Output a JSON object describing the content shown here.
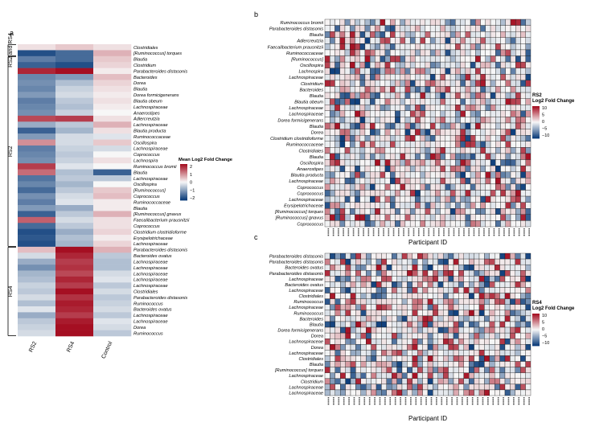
{
  "panel_labels": {
    "a": "a",
    "b": "b",
    "c": "c"
  },
  "chart_data": [
    {
      "type": "heatmap",
      "panel": "a",
      "columns": [
        "RS2",
        "RS4",
        "Control"
      ],
      "groups": [
        "RS2 and RS4",
        "RS2",
        "RS4"
      ],
      "legend": {
        "title": "Mean Log2 Fold Change",
        "ticks": [
          "2",
          "1",
          "0",
          "−1",
          "−2"
        ],
        "range": [
          -2,
          2
        ]
      },
      "rows": [
        {
          "name": "Clostridiales",
          "values": [
            0.2,
            0.4,
            0.2
          ]
        },
        {
          "name": "[Ruminococcus] torques",
          "values": [
            -1.8,
            -1.5,
            0.6
          ]
        },
        {
          "name": "Blautia",
          "values": [
            -1.3,
            -1.5,
            0.4
          ]
        },
        {
          "name": "Clostridium",
          "values": [
            -1.6,
            -1.8,
            0.3
          ]
        },
        {
          "name": "Parabacteroides distasonis",
          "values": [
            1.8,
            2.2,
            0.1
          ]
        },
        {
          "name": "Bacteroides",
          "values": [
            -1.2,
            -1.0,
            0.5
          ]
        },
        {
          "name": "Dorea",
          "values": [
            -1.1,
            -0.6,
            0.3
          ]
        },
        {
          "name": "Blautia",
          "values": [
            -1.2,
            -0.4,
            0.2
          ]
        },
        {
          "name": "Dorea formicigenerans",
          "values": [
            -1.0,
            -0.3,
            0.1
          ]
        },
        {
          "name": "Blautia obeum",
          "values": [
            -1.3,
            -0.5,
            0.2
          ]
        },
        {
          "name": "Lachnospiraceae",
          "values": [
            -1.2,
            -0.6,
            0.1
          ]
        },
        {
          "name": "Anaerostipes",
          "values": [
            -1.1,
            -0.4,
            0.0
          ]
        },
        {
          "name": "Adlercreutzia",
          "values": [
            1.5,
            1.6,
            0.2
          ]
        },
        {
          "name": "Lachnospiraceae",
          "values": [
            -0.8,
            -0.5,
            0.6
          ]
        },
        {
          "name": "Blautia producta",
          "values": [
            -1.6,
            -0.7,
            0.2
          ]
        },
        {
          "name": "Ruminococcaceae",
          "values": [
            -1.0,
            -0.3,
            -0.2
          ]
        },
        {
          "name": "Oscillospira",
          "values": [
            0.9,
            -0.3,
            0.4
          ]
        },
        {
          "name": "Lachnospiraceae",
          "values": [
            -1.3,
            -0.4,
            -0.3
          ]
        },
        {
          "name": "Coprococcus",
          "values": [
            -1.2,
            -0.5,
            0.0
          ]
        },
        {
          "name": "Lachnospira",
          "values": [
            -1.1,
            -0.4,
            0.2
          ]
        },
        {
          "name": "Ruminococcus bromii",
          "values": [
            1.6,
            -0.2,
            0.0
          ]
        },
        {
          "name": "Blautia",
          "values": [
            1.2,
            -0.6,
            -1.6
          ]
        },
        {
          "name": "Lachnospiraceae",
          "values": [
            -1.4,
            -0.5,
            -0.5
          ]
        },
        {
          "name": "Oscillospira",
          "values": [
            -1.2,
            -0.7,
            0.0
          ]
        },
        {
          "name": "[Ruminococcus]",
          "values": [
            -1.5,
            -0.5,
            0.4
          ]
        },
        {
          "name": "Coprococcus",
          "values": [
            -1.1,
            -0.3,
            0.5
          ]
        },
        {
          "name": "Ruminococcaceae",
          "values": [
            -1.3,
            -0.2,
            0.1
          ]
        },
        {
          "name": "Blautia",
          "values": [
            -1.0,
            -0.8,
            0.1
          ]
        },
        {
          "name": "[Ruminococcus] gnavus",
          "values": [
            -1.6,
            -0.5,
            0.6
          ]
        },
        {
          "name": "Faecalibacterium prausnitzii",
          "values": [
            1.3,
            -0.3,
            0.2
          ]
        },
        {
          "name": "Coprococcus",
          "values": [
            -1.5,
            -0.5,
            0.2
          ]
        },
        {
          "name": "Clostridium clostridioforme",
          "values": [
            -1.8,
            -0.8,
            0.3
          ]
        },
        {
          "name": "Erysipelotrichaceae",
          "values": [
            -1.7,
            -0.6,
            0.1
          ]
        },
        {
          "name": "Lachnospiraceae",
          "values": [
            -1.8,
            -0.7,
            0.3
          ]
        },
        {
          "name": "Parabacteroides distasonis",
          "values": [
            0.5,
            2.1,
            0.6
          ]
        },
        {
          "name": "Bacteroides ovatus",
          "values": [
            -0.3,
            1.8,
            -0.5
          ]
        },
        {
          "name": "Lachnospiraceae",
          "values": [
            -0.8,
            1.6,
            -0.6
          ]
        },
        {
          "name": "Lachnospiraceae",
          "values": [
            -1.1,
            1.7,
            -0.6
          ]
        },
        {
          "name": "Lachnospiraceae",
          "values": [
            -0.7,
            1.5,
            -0.3
          ]
        },
        {
          "name": "Lachnospiraceae",
          "values": [
            -0.6,
            1.8,
            -0.2
          ]
        },
        {
          "name": "Lachnospiraceae",
          "values": [
            -0.4,
            1.6,
            -0.5
          ]
        },
        {
          "name": "Clostridiales",
          "values": [
            -0.5,
            2.0,
            -0.3
          ]
        },
        {
          "name": "Parabacteroides distasonis",
          "values": [
            -0.3,
            1.7,
            -0.5
          ]
        },
        {
          "name": "Ruminococcus",
          "values": [
            -0.6,
            1.9,
            -0.4
          ]
        },
        {
          "name": "Bacteroides ovatus",
          "values": [
            -0.2,
            1.8,
            -0.3
          ]
        },
        {
          "name": "Lachnospiraceae",
          "values": [
            -0.8,
            1.6,
            -0.5
          ]
        },
        {
          "name": "Lachnospiraceae",
          "values": [
            -0.5,
            1.9,
            -0.2
          ]
        },
        {
          "name": "Dorea",
          "values": [
            -0.4,
            2.0,
            -0.3
          ]
        },
        {
          "name": "Ruminococcus",
          "values": [
            -0.3,
            2.1,
            -0.5
          ]
        }
      ]
    },
    {
      "type": "heatmap",
      "panel": "b",
      "xlabel": "Participant ID",
      "legend": {
        "title": [
          "RS2",
          "Log2 Fold Change"
        ],
        "ticks": [
          "10",
          "5",
          "0",
          "−5",
          "−10"
        ],
        "range": [
          -10,
          10
        ]
      },
      "n_participants": 41,
      "rows": [
        "Ruminococcus bromii",
        "Parabacteroides distasonis",
        "Blautia",
        "Adlercreutzia",
        "Faecalibacterium prausnitzii",
        "Ruminococcaceae",
        "[Ruminococcus]",
        "Oscillospira",
        "Lachnospira",
        "Lachnospiraceae",
        "Clostridium",
        "Bacteroides",
        "Blautia",
        "Blautia obeum",
        "Lachnospiraceae",
        "Lachnospiraceae",
        "Dorea formicigenerans",
        "Blautia",
        "Dorea",
        "Clostridium clostridioforme",
        "Ruminococcaceae",
        "Clostridiales",
        "Blautia",
        "Oscillospira",
        "Anaerostipes",
        "Blautia producta",
        "Lachnospiraceae",
        "Coprococcus",
        "Coprococcus",
        "Lachnospiraceae",
        "Erysipelotrichaceae",
        "[Ruminococcus] torques",
        "[Ruminococcus] gnavus",
        "Coprococcus"
      ],
      "values_note": ""
    },
    {
      "type": "heatmap",
      "panel": "c",
      "xlabel": "Participant ID",
      "legend": {
        "title": [
          "RS4",
          "Log2 Fold Change"
        ],
        "ticks": [
          "10",
          "5",
          "0",
          "−5",
          "−10"
        ],
        "range": [
          -10,
          10
        ]
      },
      "n_participants": 40,
      "rows": [
        "Parabacteroides distasonis",
        "Parabacteroides distasonis",
        "Bacteroides ovatus",
        "Parabacteroides distasonis",
        "Lachnospiraceae",
        "Bacteroides ovatus",
        "Lachnospiraceae",
        "Clostridiales",
        "Ruminococcus",
        "Lachnospiraceae",
        "Ruminococcus",
        "Bacteroides",
        "Blautia",
        "Dorea formicigenerans",
        "Dorea",
        "Lachnospiraceae",
        "Dorea",
        "Lachnospiraceae",
        "Clostridiales",
        "Blautia",
        "[Ruminococcus] torques",
        "Lachnospiraceae",
        "Clostridium",
        "Lachnospiraceae",
        "Lachnospiraceae"
      ]
    }
  ],
  "colors": {
    "high": "#a50f22",
    "mid": "#f7f7f7",
    "low": "#0b3c7a",
    "grid": "#1a1a1a"
  }
}
